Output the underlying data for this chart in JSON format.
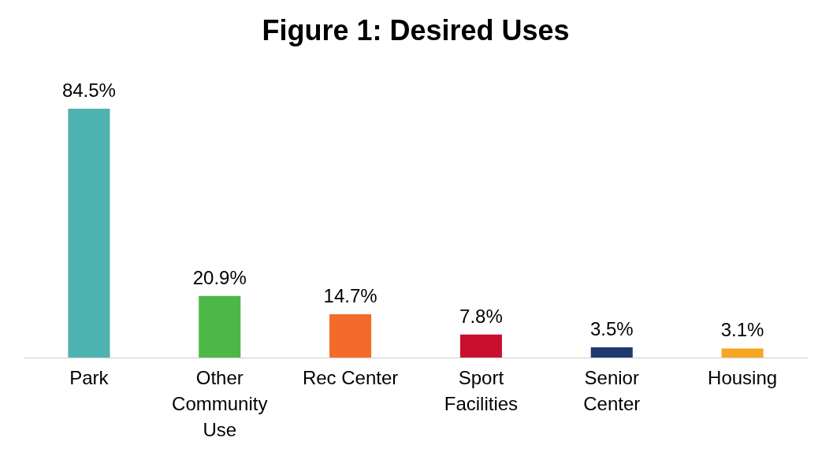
{
  "chart_data": {
    "type": "bar",
    "title": "Figure 1: Desired Uses",
    "categories": [
      "Park",
      "Other Community Use",
      "Rec Center",
      "Sport Facilities",
      "Senior Center",
      "Housing"
    ],
    "values": [
      84.5,
      20.9,
      14.7,
      7.8,
      3.5,
      3.1
    ],
    "colors": [
      "#4eb3b0",
      "#4db748",
      "#f26b2a",
      "#c8102e",
      "#1f3a6e",
      "#f6a623"
    ],
    "value_labels": [
      "84.5%",
      "20.9%",
      "14.7%",
      "7.8%",
      "3.5%",
      "3.1%"
    ],
    "tick_labels": "x"
  }
}
